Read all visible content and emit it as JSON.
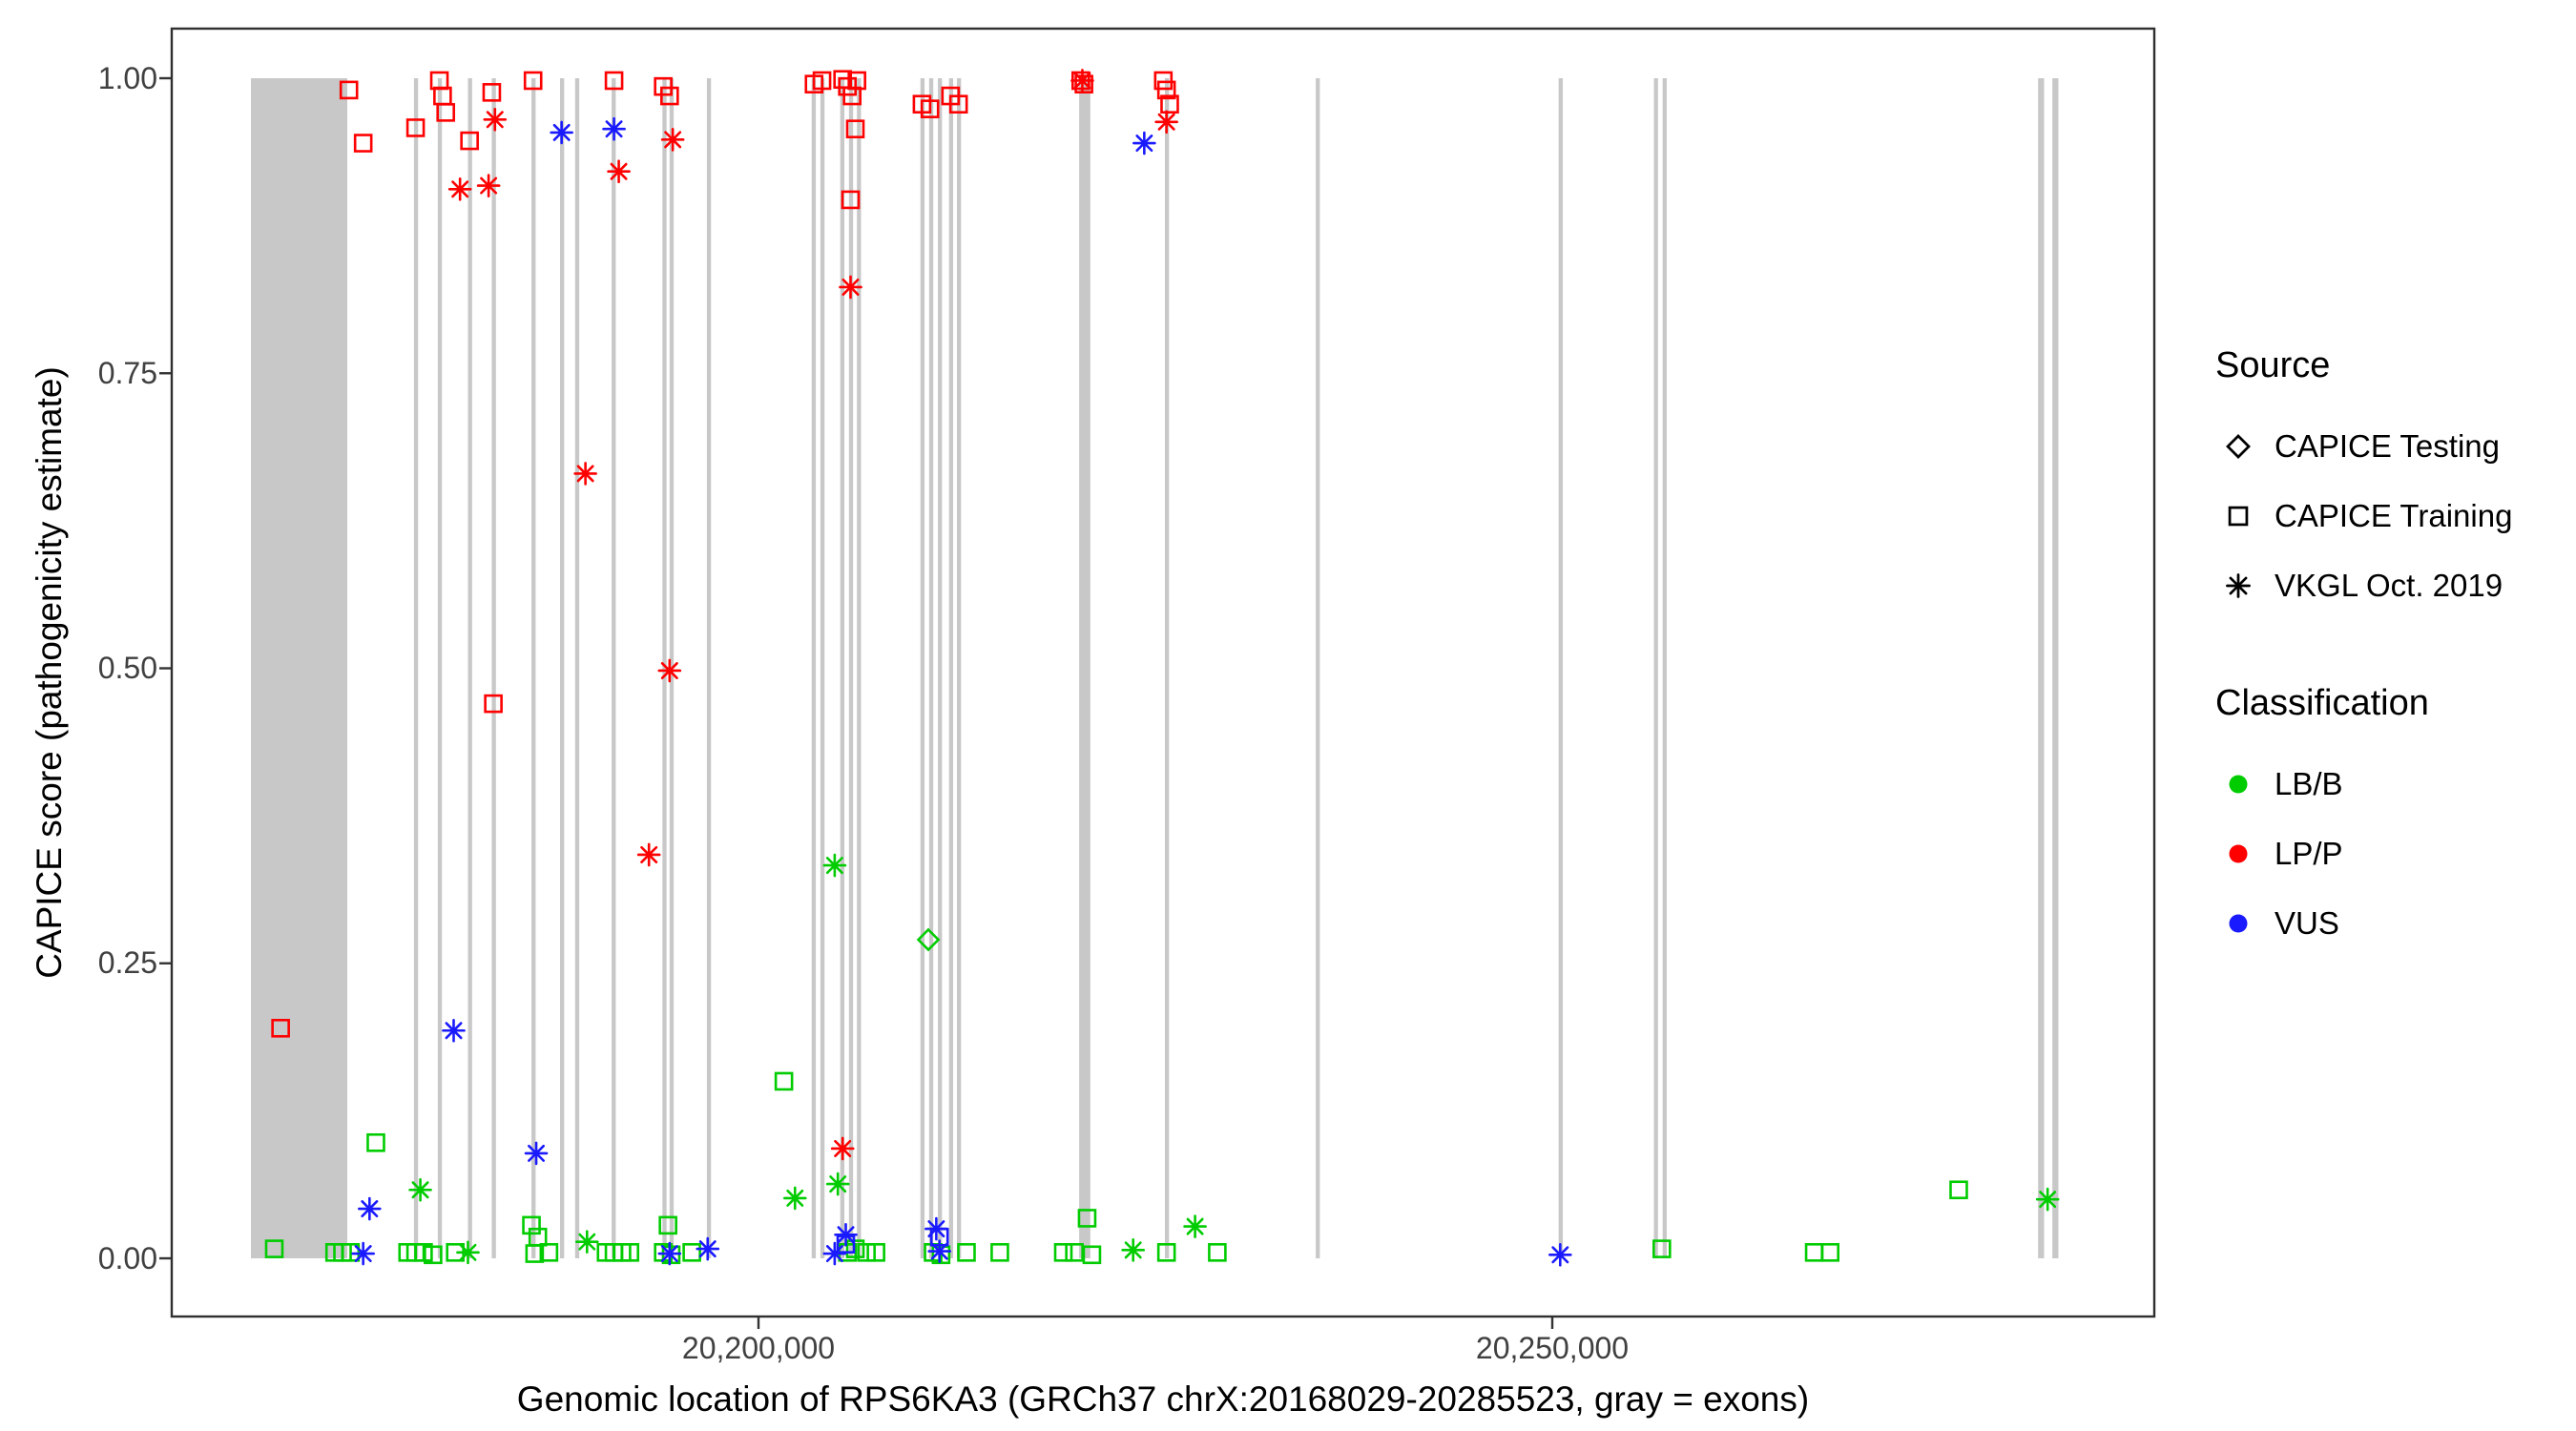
{
  "figure": {
    "y_axis": {
      "title": "CAPICE score (pathogenicity estimate)",
      "ticks": [
        "0.00",
        "0.25",
        "0.50",
        "0.75",
        "1.00"
      ],
      "tick_values": [
        0,
        0.25,
        0.5,
        0.75,
        1
      ]
    },
    "x_axis": {
      "title": "Genomic location of RPS6KA3 (GRCh37 chrX:20168029-20285523, gray = exons)",
      "ticks": [
        "20,200,000",
        "20,250,000"
      ],
      "tick_values": [
        20200000,
        20250000
      ]
    },
    "legend": {
      "source": {
        "title": "Source",
        "items": [
          {
            "label": "CAPICE Testing",
            "shape": "diamond"
          },
          {
            "label": "CAPICE Training",
            "shape": "square"
          },
          {
            "label": "VKGL Oct. 2019",
            "shape": "asterisk"
          }
        ]
      },
      "classification": {
        "title": "Classification",
        "items": [
          {
            "label": "LB/B",
            "color": "#00cc00"
          },
          {
            "label": "LP/P",
            "color": "#ff0000"
          },
          {
            "label": "VUS",
            "color": "#1a1aff"
          }
        ]
      }
    }
  },
  "chart_data": {
    "type": "scatter",
    "title": "",
    "xlabel": "Genomic location of RPS6KA3 (GRCh37 chrX:20168029-20285523, gray = exons)",
    "ylabel": "CAPICE score (pathogenicity estimate)",
    "xlim": [
      20163040,
      20288040
    ],
    "ylim": [
      0,
      1
    ],
    "grid": false,
    "legend_position": "right",
    "exon_color": "#c8c8c8",
    "colors": {
      "LB/B": "#00cc00",
      "LP/P": "#ff0000",
      "VUS": "#1a1aff"
    },
    "exons": [
      [
        20168029,
        20174100
      ],
      [
        20178300,
        20178560
      ],
      [
        20179800,
        20180060
      ],
      [
        20181700,
        20181960
      ],
      [
        20183200,
        20183460
      ],
      [
        20185700,
        20185960
      ],
      [
        20187500,
        20187760
      ],
      [
        20188450,
        20188710
      ],
      [
        20190750,
        20191010
      ],
      [
        20193950,
        20194210
      ],
      [
        20194400,
        20194660
      ],
      [
        20196750,
        20197010
      ],
      [
        20203350,
        20203610
      ],
      [
        20203900,
        20204160
      ],
      [
        20205150,
        20205410
      ],
      [
        20205700,
        20205960
      ],
      [
        20206200,
        20206460
      ],
      [
        20210200,
        20210460
      ],
      [
        20210750,
        20211010
      ],
      [
        20211300,
        20211560
      ],
      [
        20212000,
        20212260
      ],
      [
        20212500,
        20212760
      ],
      [
        20220200,
        20220900
      ],
      [
        20225600,
        20225860
      ],
      [
        20235100,
        20235360
      ],
      [
        20250400,
        20250660
      ],
      [
        20256400,
        20256660
      ],
      [
        20256950,
        20257210
      ],
      [
        20280600,
        20280980
      ],
      [
        20281500,
        20281880
      ]
    ],
    "series": [
      {
        "name": "CAPICE Testing / LB/B",
        "source": "CAPICE Testing",
        "classification": "LB/B",
        "shape": "diamond",
        "points": [
          [
            20210700,
            0.27
          ]
        ]
      },
      {
        "name": "CAPICE Training / LB/B",
        "source": "CAPICE Training",
        "classification": "LB/B",
        "shape": "square",
        "points": [
          [
            20169500,
            0.008
          ],
          [
            20173300,
            0.005
          ],
          [
            20173800,
            0.005
          ],
          [
            20174300,
            0.005
          ],
          [
            20175900,
            0.098
          ],
          [
            20177900,
            0.005
          ],
          [
            20178400,
            0.005
          ],
          [
            20178900,
            0.005
          ],
          [
            20179500,
            0.003
          ],
          [
            20180900,
            0.005
          ],
          [
            20185700,
            0.028
          ],
          [
            20186100,
            0.018
          ],
          [
            20185900,
            0.004
          ],
          [
            20186800,
            0.005
          ],
          [
            20190400,
            0.005
          ],
          [
            20190900,
            0.005
          ],
          [
            20191400,
            0.005
          ],
          [
            20191900,
            0.005
          ],
          [
            20194300,
            0.028
          ],
          [
            20194000,
            0.005
          ],
          [
            20194500,
            0.003
          ],
          [
            20195800,
            0.005
          ],
          [
            20201600,
            0.15
          ],
          [
            20205600,
            0.005
          ],
          [
            20206100,
            0.008
          ],
          [
            20206800,
            0.005
          ],
          [
            20207400,
            0.005
          ],
          [
            20211000,
            0.005
          ],
          [
            20211500,
            0.003
          ],
          [
            20213100,
            0.005
          ],
          [
            20215200,
            0.005
          ],
          [
            20219200,
            0.005
          ],
          [
            20219900,
            0.005
          ],
          [
            20220700,
            0.034
          ],
          [
            20221000,
            0.003
          ],
          [
            20225700,
            0.005
          ],
          [
            20228900,
            0.005
          ],
          [
            20256900,
            0.008
          ],
          [
            20266500,
            0.005
          ],
          [
            20267500,
            0.005
          ],
          [
            20275600,
            0.058
          ]
        ]
      },
      {
        "name": "CAPICE Training / LP/P",
        "source": "CAPICE Training",
        "classification": "LP/P",
        "shape": "square",
        "points": [
          [
            20169900,
            0.195
          ],
          [
            20174200,
            0.99
          ],
          [
            20175100,
            0.945
          ],
          [
            20178400,
            0.958
          ],
          [
            20179900,
            0.998
          ],
          [
            20180100,
            0.985
          ],
          [
            20180300,
            0.971
          ],
          [
            20181800,
            0.947
          ],
          [
            20183200,
            0.988
          ],
          [
            20183300,
            0.47
          ],
          [
            20185800,
            0.998
          ],
          [
            20190900,
            0.998
          ],
          [
            20194000,
            0.993
          ],
          [
            20194400,
            0.985
          ],
          [
            20203500,
            0.995
          ],
          [
            20204000,
            0.998
          ],
          [
            20205300,
            0.999
          ],
          [
            20205600,
            0.993
          ],
          [
            20205900,
            0.985
          ],
          [
            20206200,
            0.998
          ],
          [
            20206100,
            0.957
          ],
          [
            20205800,
            0.897
          ],
          [
            20210300,
            0.978
          ],
          [
            20210800,
            0.974
          ],
          [
            20212100,
            0.985
          ],
          [
            20212600,
            0.978
          ],
          [
            20220300,
            0.998
          ],
          [
            20220500,
            0.995
          ],
          [
            20225500,
            0.998
          ],
          [
            20225700,
            0.99
          ],
          [
            20225900,
            0.978
          ]
        ]
      },
      {
        "name": "CAPICE Training / VUS",
        "source": "CAPICE Training",
        "classification": "VUS",
        "shape": "square",
        "points": [
          [
            20205500,
            0.012
          ],
          [
            20211400,
            0.018
          ]
        ]
      },
      {
        "name": "VKGL Oct. 2019 / LB/B",
        "source": "VKGL Oct. 2019",
        "classification": "LB/B",
        "shape": "asterisk",
        "points": [
          [
            20178700,
            0.058
          ],
          [
            20181700,
            0.005
          ],
          [
            20189200,
            0.014
          ],
          [
            20202300,
            0.051
          ],
          [
            20204800,
            0.333
          ],
          [
            20205000,
            0.063
          ],
          [
            20223600,
            0.007
          ],
          [
            20227500,
            0.027
          ],
          [
            20281200,
            0.05
          ]
        ]
      },
      {
        "name": "VKGL Oct. 2019 / LP/P",
        "source": "VKGL Oct. 2019",
        "classification": "LP/P",
        "shape": "asterisk",
        "points": [
          [
            20181200,
            0.906
          ],
          [
            20183000,
            0.909
          ],
          [
            20183400,
            0.965
          ],
          [
            20189100,
            0.665
          ],
          [
            20191200,
            0.921
          ],
          [
            20194600,
            0.948
          ],
          [
            20194400,
            0.498
          ],
          [
            20193100,
            0.342
          ],
          [
            20205800,
            0.823
          ],
          [
            20205300,
            0.093
          ],
          [
            20220400,
            0.998
          ],
          [
            20225700,
            0.963
          ]
        ]
      },
      {
        "name": "VKGL Oct. 2019 / VUS",
        "source": "VKGL Oct. 2019",
        "classification": "VUS",
        "shape": "asterisk",
        "points": [
          [
            20175500,
            0.042
          ],
          [
            20175100,
            0.004
          ],
          [
            20180800,
            0.193
          ],
          [
            20186000,
            0.089
          ],
          [
            20187600,
            0.954
          ],
          [
            20190900,
            0.957
          ],
          [
            20194400,
            0.004
          ],
          [
            20196800,
            0.008
          ],
          [
            20204800,
            0.004
          ],
          [
            20205500,
            0.02
          ],
          [
            20211200,
            0.025
          ],
          [
            20211400,
            0.006
          ],
          [
            20224300,
            0.945
          ],
          [
            20250500,
            0.003
          ]
        ]
      }
    ]
  }
}
